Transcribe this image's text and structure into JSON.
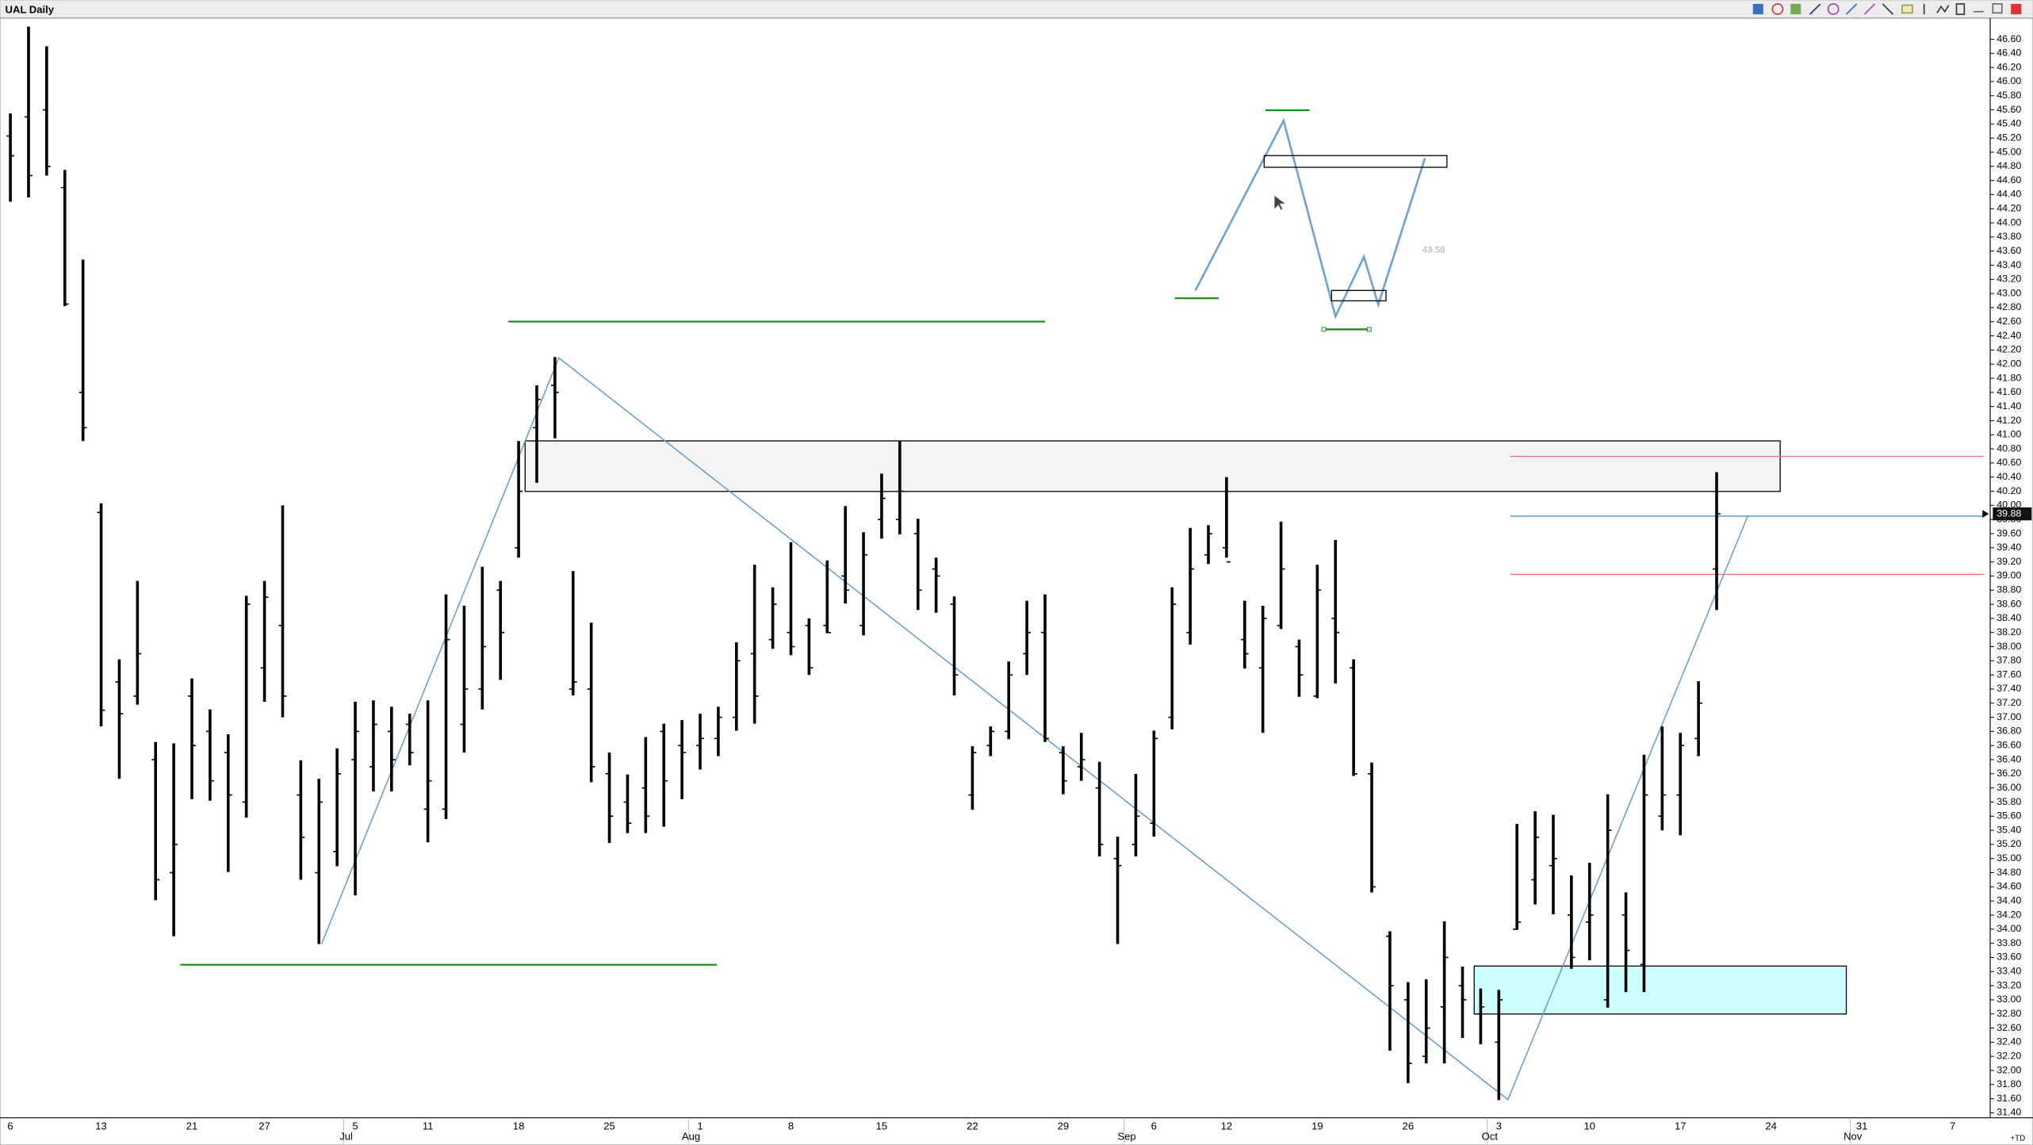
{
  "chart_data": {
    "type": "ohlc",
    "title": "UAL Daily",
    "color": "#000000",
    "categories": [
      "6",
      null,
      null,
      null,
      null,
      "13",
      null,
      null,
      null,
      null,
      "21",
      null,
      null,
      null,
      "27",
      null,
      null,
      null,
      null,
      "5",
      null,
      null,
      null,
      "11",
      null,
      null,
      null,
      null,
      "18",
      null,
      null,
      null,
      null,
      "25",
      null,
      null,
      null,
      null,
      "1",
      null,
      null,
      null,
      null,
      "8",
      null,
      null,
      null,
      null,
      "15",
      null,
      null,
      null,
      null,
      "22",
      null,
      null,
      null,
      null,
      "29",
      null,
      null,
      null,
      null,
      "6",
      null,
      null,
      null,
      "12",
      null,
      null,
      null,
      null,
      "19",
      null,
      null,
      null,
      null,
      "26",
      null,
      null,
      null,
      null,
      "3",
      null,
      null,
      null,
      null,
      "10",
      null,
      null,
      null,
      null,
      "17",
      null,
      null,
      null,
      null,
      "24",
      null,
      null,
      null,
      null,
      "31",
      null,
      null,
      null,
      null,
      "7",
      null
    ],
    "months": [
      null,
      null,
      null,
      null,
      null,
      null,
      null,
      null,
      null,
      null,
      null,
      null,
      null,
      null,
      null,
      null,
      null,
      null,
      null,
      "Jul",
      null,
      null,
      null,
      null,
      null,
      null,
      null,
      null,
      null,
      null,
      null,
      null,
      null,
      null,
      null,
      null,
      null,
      null,
      "Aug",
      null,
      null,
      null,
      null,
      null,
      null,
      null,
      null,
      null,
      null,
      null,
      null,
      null,
      null,
      null,
      null,
      null,
      null,
      null,
      null,
      null,
      null,
      null,
      "Sep",
      null,
      null,
      null,
      null,
      null,
      null,
      null,
      null,
      null,
      null,
      null,
      null,
      null,
      null,
      null,
      null,
      null,
      null,
      null,
      "Oct",
      null,
      null,
      null,
      null,
      null,
      null,
      null,
      null,
      null,
      null,
      null,
      null,
      null,
      null,
      null,
      null,
      null,
      null,
      null,
      "Nov",
      null,
      null,
      null,
      null,
      null
    ],
    "open": [
      45.23,
      45.5,
      45.6,
      44.5,
      41.6,
      39.9,
      37.5,
      37.3,
      36.4,
      34.8,
      37.3,
      36.8,
      36.5,
      35.8,
      37.7,
      38.3,
      35.9,
      34.8,
      35.1,
      36.4,
      36.3,
      36.8,
      36.9,
      35.7,
      35.7,
      36.9,
      37.4,
      38.8,
      39.4,
      41.1,
      41.7,
      37.4,
      37.4,
      36.2,
      35.8,
      36,
      36.8,
      36.6,
      36.6,
      36.7,
      37,
      37.9,
      38.1,
      38.2,
      38.3,
      38.3,
      39,
      38.3,
      39.8,
      39.8,
      39.6,
      39.1,
      38.6,
      35.9,
      36.6,
      36.8,
      37.9,
      38.2,
      36.5,
      36.3,
      36,
      35,
      35.2,
      35.5,
      37,
      38.2,
      39.3,
      39.4,
      38.1,
      37.7,
      38.3,
      38,
      37.3,
      38.4,
      37.7,
      36.2,
      33.9,
      33,
      32.2,
      32.9,
      33.2,
      32.8,
      32.4,
      34,
      34.7,
      34.9,
      34.2,
      34.1,
      33,
      34.2,
      33.5,
      35.6,
      35.9,
      36.7,
      39.1,
      null,
      null,
      null,
      null,
      null,
      null,
      null,
      null,
      null,
      null,
      null,
      null,
      null,
      null
    ],
    "high": [
      45.55,
      46.78,
      46.5,
      44.75,
      43.48,
      40.03,
      37.82,
      38.93,
      36.65,
      36.63,
      37.55,
      37.11,
      36.76,
      38.72,
      38.93,
      40,
      36.39,
      36.13,
      36.56,
      37.22,
      37.24,
      37.15,
      37.05,
      37.24,
      38.74,
      38.58,
      39.13,
      38.93,
      40.91,
      41.7,
      42.1,
      39.07,
      38.34,
      36.5,
      36.19,
      36.72,
      36.91,
      36.96,
      37.05,
      37.15,
      38.06,
      39.16,
      38.84,
      39.48,
      38.4,
      39.22,
      39.99,
      39.62,
      40.45,
      40.91,
      39.81,
      39.26,
      38.71,
      36.59,
      36.87,
      37.79,
      38.65,
      38.74,
      36.59,
      36.78,
      36.37,
      35.31,
      36.2,
      36.81,
      38.84,
      39.68,
      39.72,
      40.4,
      38.65,
      38.58,
      39.77,
      38.1,
      39.16,
      39.51,
      37.82,
      36.36,
      33.97,
      33.25,
      33.29,
      34.11,
      33.47,
      33.16,
      33.14,
      35.49,
      35.67,
      35.62,
      34.76,
      34.94,
      35.91,
      34.52,
      36.47,
      36.87,
      36.78,
      37.51,
      40.47,
      null,
      null,
      null,
      null,
      null,
      null,
      null,
      null,
      null,
      null,
      null,
      null,
      null,
      null
    ],
    "low": [
      44.3,
      44.36,
      44.67,
      42.82,
      40.91,
      36.87,
      36.13,
      37.18,
      34.41,
      33.9,
      35.84,
      35.82,
      34.81,
      35.58,
      37.22,
      37,
      34.7,
      33.79,
      34.89,
      34.48,
      35.95,
      35.95,
      36.32,
      35.23,
      35.56,
      36.5,
      37.11,
      37.53,
      39.26,
      40.32,
      40.95,
      37.31,
      36.08,
      35.22,
      35.36,
      35.36,
      35.45,
      35.84,
      36.26,
      36.45,
      36.81,
      36.91,
      37.97,
      37.88,
      37.6,
      38.19,
      38.61,
      38.16,
      39.53,
      39.59,
      38.52,
      38.48,
      37.31,
      35.69,
      36.45,
      36.69,
      37.6,
      36.65,
      35.91,
      36.1,
      35.03,
      33.79,
      35.03,
      35.31,
      36.83,
      38.03,
      39.17,
      39.26,
      37.69,
      36.78,
      38.25,
      37.29,
      37.27,
      37.48,
      36.17,
      34.52,
      32.28,
      31.82,
      32.1,
      32.1,
      32.46,
      32.37,
      31.58,
      33.99,
      34.35,
      34.21,
      33.44,
      33.56,
      32.89,
      33.11,
      33.11,
      35.4,
      35.33,
      36.45,
      38.52,
      null,
      null,
      null,
      null,
      null,
      null,
      null,
      null,
      null,
      null,
      null,
      null,
      null,
      null
    ],
    "close": [
      44.95,
      44.67,
      44.8,
      42.85,
      41.1,
      37.1,
      37.05,
      37.9,
      34.7,
      35.2,
      36.6,
      36.1,
      35.9,
      38.6,
      38.7,
      37.3,
      35.3,
      35.8,
      36.2,
      36.8,
      36.9,
      36.4,
      36.5,
      36.1,
      38.1,
      37.4,
      38,
      38.2,
      40.2,
      41.5,
      41.6,
      37.5,
      36.3,
      35.6,
      35.5,
      35.6,
      36.1,
      36.5,
      36.7,
      37,
      37.8,
      37.3,
      38.6,
      38,
      37.7,
      38.2,
      38.8,
      39.3,
      40.1,
      40.2,
      38.8,
      39,
      37.6,
      36.5,
      36.8,
      37.6,
      38.2,
      36.7,
      36.1,
      36.4,
      35.2,
      34.9,
      35.6,
      36.7,
      38.6,
      39.1,
      39.6,
      39.2,
      37.9,
      38.4,
      39.1,
      37.6,
      38.8,
      38.2,
      36.2,
      34.6,
      33.2,
      32.1,
      32.6,
      33.6,
      33,
      32.9,
      33,
      34.1,
      35.3,
      35,
      33.6,
      34.2,
      35.4,
      33.7,
      35.9,
      35.9,
      36.6,
      37.2,
      39.88,
      null,
      null,
      null,
      null,
      null,
      null,
      null,
      null,
      null,
      null,
      null,
      null,
      null,
      null
    ],
    "ylim": [
      31.33,
      46.88
    ],
    "yticks": [
      {
        "value": 46.6,
        "label": "46.60"
      },
      {
        "value": 46.4,
        "label": "46.40"
      },
      {
        "value": 46.2,
        "label": "46.20"
      },
      {
        "value": 46,
        "label": "46.00"
      },
      {
        "value": 45.8,
        "label": "45.80"
      },
      {
        "value": 45.6,
        "label": "45.60"
      },
      {
        "value": 45.4,
        "label": "45.40"
      },
      {
        "value": 45.2,
        "label": "45.20"
      },
      {
        "value": 45,
        "label": "45.00"
      },
      {
        "value": 44.8,
        "label": "44.80"
      },
      {
        "value": 44.6,
        "label": "44.60"
      },
      {
        "value": 44.4,
        "label": "44.40"
      },
      {
        "value": 44.2,
        "label": "44.20"
      },
      {
        "value": 44,
        "label": "44.00"
      },
      {
        "value": 43.8,
        "label": "43.80"
      },
      {
        "value": 43.6,
        "label": "43.60"
      },
      {
        "value": 43.4,
        "label": "43.40"
      },
      {
        "value": 43.2,
        "label": "43.20"
      },
      {
        "value": 43,
        "label": "43.00"
      },
      {
        "value": 42.8,
        "label": "42.80"
      },
      {
        "value": 42.6,
        "label": "42.60"
      },
      {
        "value": 42.4,
        "label": "42.40"
      },
      {
        "value": 42.2,
        "label": "42.20"
      },
      {
        "value": 42,
        "label": "42.00"
      },
      {
        "value": 41.8,
        "label": "41.80"
      },
      {
        "value": 41.6,
        "label": "41.60"
      },
      {
        "value": 41.4,
        "label": "41.40"
      },
      {
        "value": 41.2,
        "label": "41.20"
      },
      {
        "value": 41,
        "label": "41.00"
      },
      {
        "value": 40.8,
        "label": "40.80"
      },
      {
        "value": 40.6,
        "label": "40.60"
      },
      {
        "value": 40.4,
        "label": "40.40"
      },
      {
        "value": 40.2,
        "label": "40.20"
      },
      {
        "value": 40,
        "label": "40.00"
      },
      {
        "value": 39.8,
        "label": "39.80"
      },
      {
        "value": 39.6,
        "label": "39.60"
      },
      {
        "value": 39.4,
        "label": "39.40"
      },
      {
        "value": 39.2,
        "label": "39.20"
      },
      {
        "value": 39,
        "label": "39.00"
      },
      {
        "value": 38.8,
        "label": "38.80"
      },
      {
        "value": 38.6,
        "label": "38.60"
      },
      {
        "value": 38.4,
        "label": "38.40"
      },
      {
        "value": 38.2,
        "label": "38.20"
      },
      {
        "value": 38,
        "label": "38.00"
      },
      {
        "value": 37.8,
        "label": "37.80"
      },
      {
        "value": 37.6,
        "label": "37.60"
      },
      {
        "value": 37.4,
        "label": "37.40"
      },
      {
        "value": 37.2,
        "label": "37.20"
      },
      {
        "value": 37,
        "label": "37.00"
      },
      {
        "value": 36.8,
        "label": "36.80"
      },
      {
        "value": 36.6,
        "label": "36.60"
      },
      {
        "value": 36.4,
        "label": "36.40"
      },
      {
        "value": 36.2,
        "label": "36.20"
      },
      {
        "value": 36,
        "label": "36.00"
      },
      {
        "value": 35.8,
        "label": "35.80"
      },
      {
        "value": 35.6,
        "label": "35.60"
      },
      {
        "value": 35.4,
        "label": "35.40"
      },
      {
        "value": 35.2,
        "label": "35.20"
      },
      {
        "value": 35,
        "label": "35.00"
      },
      {
        "value": 34.8,
        "label": "34.80"
      },
      {
        "value": 34.6,
        "label": "34.60"
      },
      {
        "value": 34.4,
        "label": "34.40"
      },
      {
        "value": 34.2,
        "label": "34.20"
      },
      {
        "value": 34,
        "label": "34.00"
      },
      {
        "value": 33.8,
        "label": "33.80"
      },
      {
        "value": 33.6,
        "label": "33.60"
      },
      {
        "value": 33.4,
        "label": "33.40"
      },
      {
        "value": 33.2,
        "label": "33.20"
      },
      {
        "value": 33,
        "label": "33.00"
      },
      {
        "value": 32.8,
        "label": "32.80"
      },
      {
        "value": 32.6,
        "label": "32.60"
      },
      {
        "value": 32.4,
        "label": "32.40"
      },
      {
        "value": 32.2,
        "label": "32.20"
      },
      {
        "value": 32,
        "label": "32.00"
      },
      {
        "value": 31.8,
        "label": "31.80"
      },
      {
        "value": 31.6,
        "label": "31.60"
      },
      {
        "value": 31.4,
        "label": "31.40"
      }
    ],
    "last_price": 39.88,
    "annotation": 43.58,
    "footer_label": "+TD"
  }
}
